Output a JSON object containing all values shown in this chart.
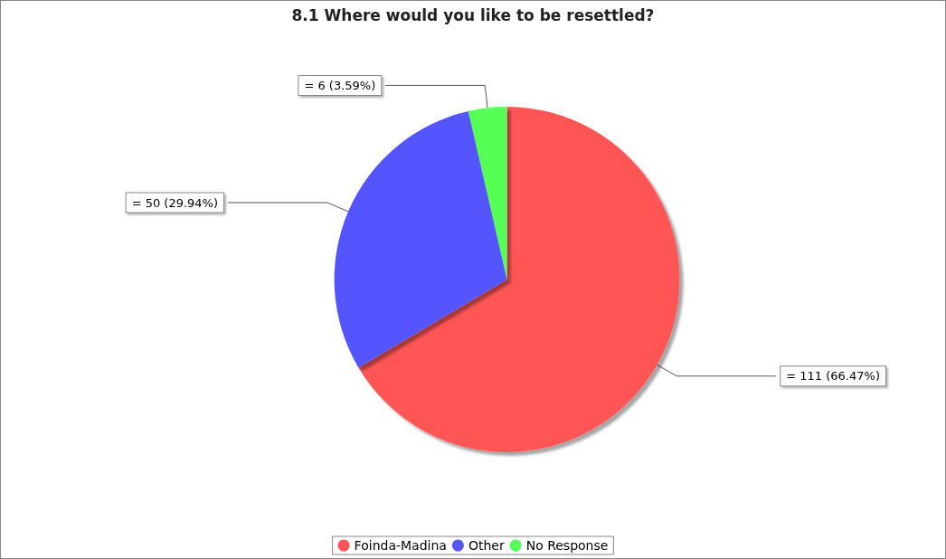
{
  "chart_data": {
    "type": "pie",
    "title": "8.1 Where would you like to be resettled?",
    "categories": [
      "Foinda-Madina",
      "Other",
      "No Response"
    ],
    "values": [
      111,
      50,
      6
    ],
    "colors": [
      "#ff5555",
      "#5555ff",
      "#55ff55"
    ],
    "value_labels": [
      "= 111 (66.47%)",
      "= 50 (29.94%)",
      "= 6 (3.59%)"
    ],
    "legend": "bottom"
  }
}
